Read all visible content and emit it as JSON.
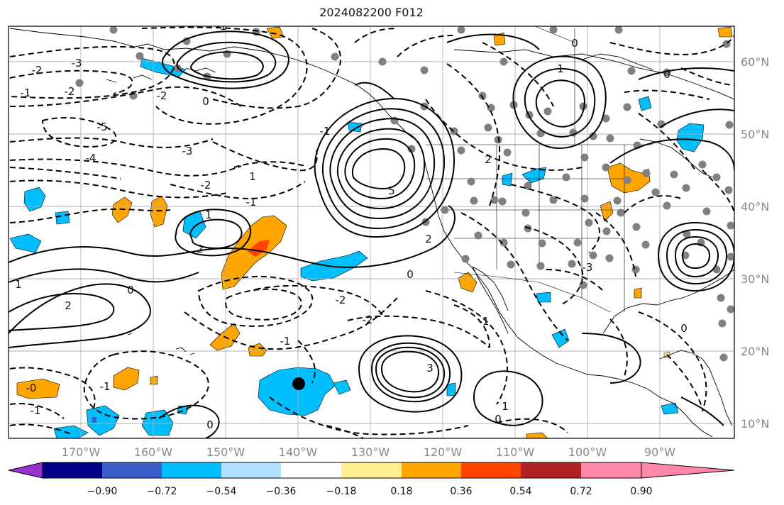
{
  "title": "2024082200 F012",
  "map": {
    "lat_ticks": [
      "60°N",
      "50°N",
      "40°N",
      "30°N",
      "20°N",
      "10°N"
    ],
    "lon_ticks": [
      "170°W",
      "160°W",
      "150°W",
      "140°W",
      "130°W",
      "120°W",
      "110°W",
      "100°W",
      "90°W"
    ],
    "contour_labels": [
      "-3",
      "-2",
      "-1",
      "-2",
      "-5",
      "-4",
      "-3",
      "-2",
      "-1",
      "1",
      "2",
      "0",
      "1",
      "2",
      "-2",
      "-2",
      "-1",
      "1",
      "5",
      "2",
      "0",
      "-1",
      "2",
      "0",
      "1",
      "-1",
      "-3",
      "3",
      "0",
      "1",
      "-1",
      "-2",
      "-1",
      "0",
      "-0",
      "-1",
      "0",
      "0",
      "0"
    ],
    "colors": {
      "contour": "#000000",
      "grid": "#b0b0b0",
      "coast": "#000000",
      "station": "#808080",
      "marker": "#000000"
    }
  },
  "colorbar": {
    "colors": [
      "#9932cc",
      "#00008b",
      "#3a5fcd",
      "#00bfff",
      "#b0e2ff",
      "#ffffff",
      "#fff08f",
      "#ffa500",
      "#ff4500",
      "#b22222",
      "#ff88aa"
    ],
    "tick_labels": [
      "−0.90",
      "−0.72",
      "−0.54",
      "−0.36",
      "−0.18",
      "0.18",
      "0.36",
      "0.54",
      "0.72",
      "0.90"
    ]
  }
}
